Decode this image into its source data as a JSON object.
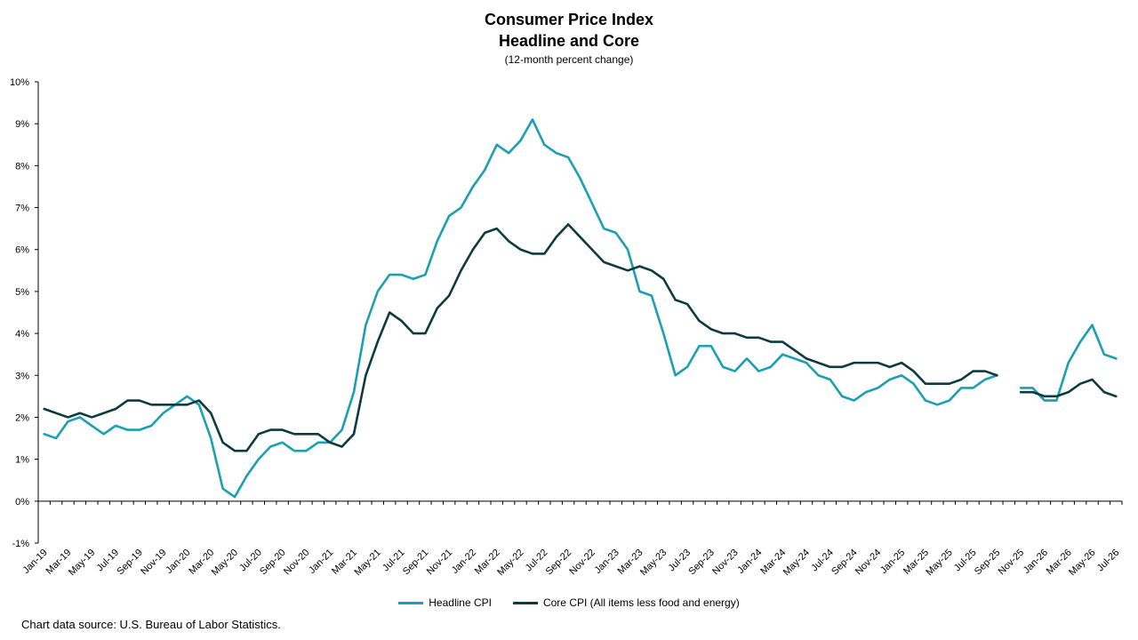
{
  "chart_data": {
    "type": "line",
    "title": "Consumer Price Index",
    "subtitle_line2": "Headline and Core",
    "subtitle": "(12-month percent change)",
    "source": "Chart data source: U.S. Bureau of Labor Statistics.",
    "ylim": [
      -1,
      10
    ],
    "yticks": [
      "-1%",
      "0%",
      "1%",
      "2%",
      "3%",
      "4%",
      "5%",
      "6%",
      "7%",
      "8%",
      "9%",
      "10%"
    ],
    "grid": false,
    "legend_position": "bottom",
    "x_start": "2019-01",
    "x_tick_labels": [
      "Jan-19",
      "Mar-19",
      "May-19",
      "Jul-19",
      "Sep-19",
      "Nov-19",
      "Jan-20",
      "Mar-20",
      "May-20",
      "Jul-20",
      "Sep-20",
      "Nov-20",
      "Jan-21",
      "Mar-21",
      "May-21",
      "Jul-21",
      "Sep-21",
      "Nov-21",
      "Jan-22",
      "Mar-22",
      "May-22",
      "Jul-22",
      "Sep-22",
      "Nov-22",
      "Jan-23",
      "Mar-23",
      "May-23",
      "Jul-23",
      "Sep-23",
      "Nov-23",
      "Jan-24",
      "Mar-24",
      "May-24",
      "Jul-24",
      "Sep-24",
      "Nov-24",
      "Jan-25",
      "Mar-25",
      "May-25",
      "Jul-25",
      "Sep-25",
      "Nov-25",
      "Jan-26",
      "Mar-26",
      "May-26",
      "Jul-26"
    ],
    "series": [
      {
        "name": "Headline CPI",
        "color": "#1a9fb3",
        "values": [
          1.6,
          1.5,
          1.9,
          2.0,
          1.8,
          1.6,
          1.8,
          1.7,
          1.7,
          1.8,
          2.1,
          2.3,
          2.5,
          2.3,
          1.5,
          0.3,
          0.1,
          0.6,
          1.0,
          1.3,
          1.4,
          1.2,
          1.2,
          1.4,
          1.4,
          1.7,
          2.6,
          4.2,
          5.0,
          5.4,
          5.4,
          5.3,
          5.4,
          6.2,
          6.8,
          7.0,
          7.5,
          7.9,
          8.5,
          8.3,
          8.6,
          9.1,
          8.5,
          8.3,
          8.2,
          7.7,
          7.1,
          6.5,
          6.4,
          6.0,
          5.0,
          4.9,
          4.0,
          3.0,
          3.2,
          3.7,
          3.7,
          3.2,
          3.1,
          3.4,
          3.1,
          3.2,
          3.5,
          3.4,
          3.3,
          3.0,
          2.9,
          2.5,
          2.4,
          2.6,
          2.7,
          2.9,
          3.0,
          2.8,
          2.4,
          2.3,
          2.4,
          2.7,
          2.7,
          2.9,
          3.0,
          null,
          2.7,
          2.7,
          2.4,
          2.4,
          3.3,
          3.8,
          4.2,
          3.5,
          3.4
        ]
      },
      {
        "name": "Core CPI (All items less food and energy)",
        "color": "#0d3b3e",
        "values": [
          2.2,
          2.1,
          2.0,
          2.1,
          2.0,
          2.1,
          2.2,
          2.4,
          2.4,
          2.3,
          2.3,
          2.3,
          2.3,
          2.4,
          2.1,
          1.4,
          1.2,
          1.2,
          1.6,
          1.7,
          1.7,
          1.6,
          1.6,
          1.6,
          1.4,
          1.3,
          1.6,
          3.0,
          3.8,
          4.5,
          4.3,
          4.0,
          4.0,
          4.6,
          4.9,
          5.5,
          6.0,
          6.4,
          6.5,
          6.2,
          6.0,
          5.9,
          5.9,
          6.3,
          6.6,
          6.3,
          6.0,
          5.7,
          5.6,
          5.5,
          5.6,
          5.5,
          5.3,
          4.8,
          4.7,
          4.3,
          4.1,
          4.0,
          4.0,
          3.9,
          3.9,
          3.8,
          3.8,
          3.6,
          3.4,
          3.3,
          3.2,
          3.2,
          3.3,
          3.3,
          3.3,
          3.2,
          3.3,
          3.1,
          2.8,
          2.8,
          2.8,
          2.9,
          3.1,
          3.1,
          3.0,
          null,
          2.6,
          2.6,
          2.5,
          2.5,
          2.6,
          2.8,
          2.9,
          2.6,
          2.5
        ]
      }
    ]
  }
}
